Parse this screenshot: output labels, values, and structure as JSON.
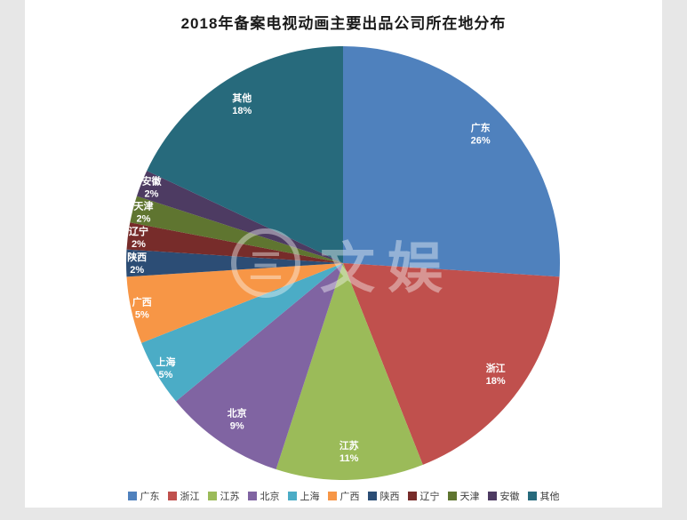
{
  "page": {
    "background_color": "#e7e7e7",
    "card_background_color": "#ffffff"
  },
  "chart_data": {
    "type": "pie",
    "title": "2018年备案电视动画主要出品公司所在地分布",
    "categories": [
      "广东",
      "浙江",
      "江苏",
      "北京",
      "上海",
      "广西",
      "陕西",
      "辽宁",
      "天津",
      "安徽",
      "其他"
    ],
    "values": [
      26,
      18,
      11,
      9,
      5,
      5,
      2,
      2,
      2,
      2,
      18
    ],
    "unit": "%",
    "colors": [
      "#4F81BD",
      "#C0504D",
      "#9BBB59",
      "#8064A2",
      "#4BACC6",
      "#F79646",
      "#2C4D75",
      "#772C2A",
      "#5F7530",
      "#4D3B62",
      "#276A7C"
    ],
    "start_angle_deg": 0,
    "direction": "clockwise",
    "label_format": "{name} {value}%",
    "legend_position": "bottom",
    "label_text_color": "#ffffff"
  },
  "watermark": {
    "logo_char": "三",
    "text": "文娱"
  }
}
